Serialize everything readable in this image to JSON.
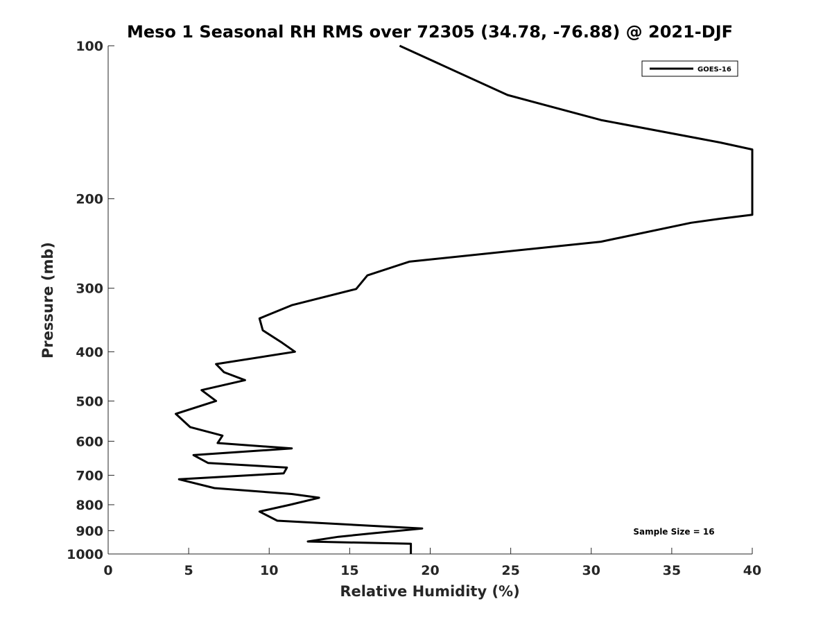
{
  "chart_data": {
    "type": "line",
    "title": "Meso 1 Seasonal RH RMS over 72305 (34.78, -76.88) @ 2021-DJF",
    "xlabel": "Relative Humidity (%)",
    "ylabel": "Pressure (mb)",
    "xlim": [
      0,
      40
    ],
    "ylim": [
      100,
      1000
    ],
    "y_scale": "log",
    "y_reversed": true,
    "x_ticks": [
      0,
      5,
      10,
      15,
      20,
      25,
      30,
      35,
      40
    ],
    "x_tick_labels": [
      "0",
      "5",
      "10",
      "15",
      "20",
      "25",
      "30",
      "35",
      "40"
    ],
    "y_ticks": [
      100,
      200,
      300,
      400,
      500,
      600,
      700,
      800,
      900,
      1000
    ],
    "y_tick_labels": [
      "100",
      "200",
      "300",
      "400",
      "500",
      "600",
      "700",
      "800",
      "900",
      "1000"
    ],
    "grid": false,
    "legend_position": "top-right",
    "series": [
      {
        "name": "GOES-16",
        "color": "#000000",
        "points": [
          [
            18.1,
            100
          ],
          [
            24.8,
            125
          ],
          [
            30.6,
            140
          ],
          [
            38.0,
            155
          ],
          [
            40.0,
            160
          ],
          [
            40.0,
            215
          ],
          [
            38.0,
            219
          ],
          [
            36.2,
            223
          ],
          [
            30.6,
            243
          ],
          [
            18.7,
            266
          ],
          [
            16.1,
            283
          ],
          [
            15.4,
            301
          ],
          [
            11.4,
            324
          ],
          [
            9.4,
            344
          ],
          [
            9.6,
            363
          ],
          [
            10.8,
            384
          ],
          [
            11.6,
            400
          ],
          [
            6.7,
            423
          ],
          [
            7.2,
            439
          ],
          [
            8.5,
            455
          ],
          [
            5.8,
            476
          ],
          [
            6.7,
            500
          ],
          [
            4.2,
            530
          ],
          [
            5.1,
            563
          ],
          [
            7.1,
            585
          ],
          [
            6.8,
            605
          ],
          [
            11.4,
            620
          ],
          [
            5.3,
            639
          ],
          [
            6.2,
            662
          ],
          [
            11.1,
            676
          ],
          [
            10.9,
            694
          ],
          [
            4.4,
            713
          ],
          [
            6.6,
            742
          ],
          [
            11.4,
            762
          ],
          [
            13.1,
            775
          ],
          [
            11.3,
            800
          ],
          [
            9.4,
            825
          ],
          [
            10.5,
            860
          ],
          [
            19.5,
            891
          ],
          [
            16.5,
            910
          ],
          [
            14.3,
            925
          ],
          [
            12.4,
            945
          ],
          [
            18.8,
            955
          ],
          [
            18.8,
            1000
          ]
        ]
      }
    ],
    "annotations": [
      "Sample Size = 16"
    ]
  }
}
